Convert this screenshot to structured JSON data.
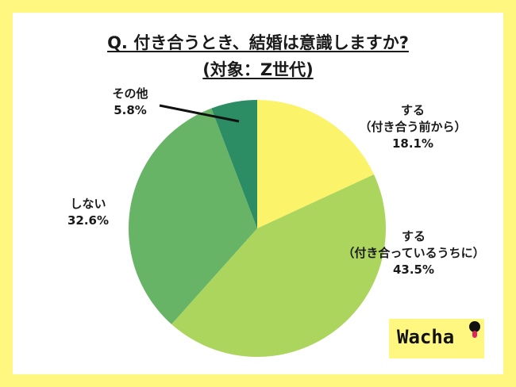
{
  "title_line1": "Q. 付き合うとき、結婚は意識しますか?",
  "title_line2": "(対象：Z世代)",
  "logo_text": "Wacha",
  "chart_data": {
    "type": "pie",
    "title": "Q. 付き合うとき、結婚は意識しますか? (対象：Z世代)",
    "slices": [
      {
        "label_lines": [
          "する",
          "（付き合う前から）"
        ],
        "value": 18.1,
        "value_label": "18.1%",
        "color": "#fbf46a"
      },
      {
        "label_lines": [
          "する",
          "（付き合っているうちに）"
        ],
        "value": 43.5,
        "value_label": "43.5%",
        "color": "#acd55e"
      },
      {
        "label_lines": [
          "しない"
        ],
        "value": 32.6,
        "value_label": "32.6%",
        "color": "#67b466"
      },
      {
        "label_lines": [
          "その他"
        ],
        "value": 5.8,
        "value_label": "5.8%",
        "color": "#2c8d64"
      }
    ],
    "start_angle": "12 o'clock",
    "direction": "clockwise"
  }
}
